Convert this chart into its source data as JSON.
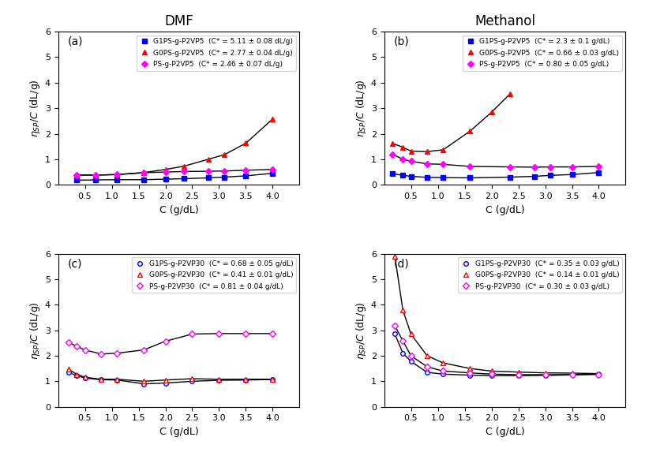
{
  "title_dmf": "DMF",
  "title_methanol": "Methanol",
  "ylabel": "$\\eta_{SP}/C$ (dL/g)",
  "xlabel": "C (g/dL)",
  "panel_a": {
    "label": "(a)",
    "series": [
      {
        "name": "G1PS-g-P2VP5",
        "legend": "G1PS-g-P2VP5  (C* = 5.11 ± 0.08 dL/g)",
        "color": "blue",
        "marker": "s",
        "x": [
          0.35,
          0.7,
          1.1,
          1.6,
          2.0,
          2.35,
          2.8,
          3.1,
          3.5,
          4.0
        ],
        "y": [
          0.18,
          0.19,
          0.2,
          0.2,
          0.22,
          0.24,
          0.27,
          0.3,
          0.35,
          0.45
        ]
      },
      {
        "name": "G0PS-g-P2VP5",
        "legend": "G0PS-g-P2VP5  (C* = 2.77 ± 0.04 dL/g)",
        "color": "red",
        "marker": "^",
        "x": [
          0.35,
          0.7,
          1.1,
          1.6,
          2.0,
          2.35,
          2.8,
          3.1,
          3.5,
          4.0
        ],
        "y": [
          0.38,
          0.38,
          0.4,
          0.48,
          0.6,
          0.73,
          1.0,
          1.18,
          1.63,
          2.58
        ]
      },
      {
        "name": "PS-g-P2VP5",
        "legend": "PS-g-P2VP5  (C* = 2.46 ± 0.07 dL/g)",
        "color": "magenta",
        "marker": "D",
        "x": [
          0.35,
          0.7,
          1.1,
          1.6,
          2.0,
          2.35,
          2.8,
          3.1,
          3.5,
          4.0
        ],
        "y": [
          0.38,
          0.38,
          0.4,
          0.47,
          0.5,
          0.52,
          0.53,
          0.54,
          0.57,
          0.6
        ]
      }
    ],
    "ylim": [
      0.0,
      6.0
    ],
    "xlim": [
      0.0,
      4.5
    ]
  },
  "panel_b": {
    "label": "(b)",
    "series": [
      {
        "name": "G1PS-g-P2VP5",
        "legend": "G1PS-g-P2VP5  (C* = 2.3 ± 0.1 g/dL)",
        "color": "blue",
        "marker": "s",
        "x": [
          0.16,
          0.35,
          0.5,
          0.8,
          1.1,
          1.6,
          2.35,
          2.8,
          3.1,
          3.5,
          4.0
        ],
        "y": [
          0.43,
          0.37,
          0.33,
          0.29,
          0.28,
          0.27,
          0.3,
          0.33,
          0.37,
          0.4,
          0.48
        ]
      },
      {
        "name": "G0PS-g-P2VP5",
        "legend": "G0PS-g-P2VP5  (C* = 0.66 ± 0.03 g/dL)",
        "color": "red",
        "marker": "^",
        "x": [
          0.16,
          0.35,
          0.5,
          0.8,
          1.1,
          1.6,
          2.0,
          2.35
        ],
        "y": [
          1.62,
          1.47,
          1.32,
          1.3,
          1.37,
          2.1,
          2.84,
          3.57
        ]
      },
      {
        "name": "PS-g-P2VP5",
        "legend": "PS-g-P2VP5  (C* = 0.80 ± 0.05 g/dL)",
        "color": "magenta",
        "marker": "D",
        "x": [
          0.16,
          0.35,
          0.5,
          0.8,
          1.1,
          1.6,
          2.35,
          2.8,
          3.1,
          3.5,
          4.0
        ],
        "y": [
          1.19,
          1.0,
          0.92,
          0.82,
          0.8,
          0.72,
          0.7,
          0.69,
          0.7,
          0.7,
          0.72
        ]
      }
    ],
    "ylim": [
      0.0,
      6.0
    ],
    "xlim": [
      0.0,
      4.5
    ]
  },
  "panel_c": {
    "label": "(c)",
    "series": [
      {
        "name": "G1PS-g-P2VP30",
        "legend": "G1PS-g-P2VP30  (C* = 0.68 ± 0.05 g/dL)",
        "color": "blue",
        "marker": "o",
        "x": [
          0.2,
          0.35,
          0.5,
          0.8,
          1.1,
          1.6,
          2.0,
          2.5,
          3.0,
          3.5,
          4.0
        ],
        "y": [
          1.35,
          1.22,
          1.13,
          1.06,
          1.05,
          0.9,
          0.93,
          1.0,
          1.04,
          1.05,
          1.07
        ]
      },
      {
        "name": "G0PS-g-P2VP30",
        "legend": "G0PS-g-P2VP30  (C* = 0.41 ± 0.01 g/dL)",
        "color": "red",
        "marker": "^",
        "x": [
          0.2,
          0.35,
          0.5,
          0.8,
          1.1,
          1.6,
          2.0,
          2.5,
          3.0,
          3.5,
          4.0
        ],
        "y": [
          1.47,
          1.27,
          1.16,
          1.08,
          1.08,
          1.0,
          1.05,
          1.1,
          1.08,
          1.08,
          1.08
        ]
      },
      {
        "name": "PS-g-P2VP30",
        "legend": "PS-g-P2VP30  (C* = 0.81 ± 0.04 g/dL)",
        "color": "magenta",
        "marker": "D",
        "x": [
          0.2,
          0.35,
          0.5,
          0.8,
          1.1,
          1.6,
          2.0,
          2.5,
          3.0,
          3.5,
          4.0
        ],
        "y": [
          2.52,
          2.37,
          2.23,
          2.07,
          2.1,
          2.23,
          2.57,
          2.85,
          2.87,
          2.87,
          2.87
        ]
      }
    ],
    "ylim": [
      0.0,
      6.0
    ],
    "xlim": [
      0.0,
      4.5
    ]
  },
  "panel_d": {
    "label": "(d)",
    "series": [
      {
        "name": "G1PS-g-P2VP30",
        "legend": "G1PS-g-P2VP30  (C* = 0.35 ± 0.03 g/dL)",
        "color": "blue",
        "marker": "o",
        "x": [
          0.2,
          0.35,
          0.5,
          0.8,
          1.1,
          1.6,
          2.0,
          2.5,
          3.0,
          3.5,
          4.0
        ],
        "y": [
          2.85,
          2.1,
          1.78,
          1.35,
          1.28,
          1.24,
          1.22,
          1.22,
          1.23,
          1.25,
          1.28
        ]
      },
      {
        "name": "G0PS-g-P2VP30",
        "legend": "G0PS-g-P2VP30  (C* = 0.14 ± 0.01 g/dL)",
        "color": "red",
        "marker": "^",
        "x": [
          0.2,
          0.35,
          0.5,
          0.8,
          1.1,
          1.6,
          2.0,
          2.5,
          3.0,
          3.5,
          4.0
        ],
        "y": [
          5.9,
          3.78,
          2.85,
          2.0,
          1.72,
          1.5,
          1.4,
          1.36,
          1.33,
          1.32,
          1.3
        ]
      },
      {
        "name": "PS-g-P2VP30",
        "legend": "PS-g-P2VP30  (C* = 0.30 ± 0.03 g/dL)",
        "color": "magenta",
        "marker": "D",
        "x": [
          0.2,
          0.35,
          0.5,
          0.8,
          1.1,
          1.6,
          2.0,
          2.5,
          3.0,
          3.5,
          4.0
        ],
        "y": [
          3.17,
          2.58,
          2.0,
          1.57,
          1.4,
          1.33,
          1.28,
          1.26,
          1.26,
          1.26,
          1.27
        ]
      }
    ],
    "ylim": [
      0.0,
      6.0
    ],
    "xlim": [
      0.0,
      4.5
    ]
  }
}
